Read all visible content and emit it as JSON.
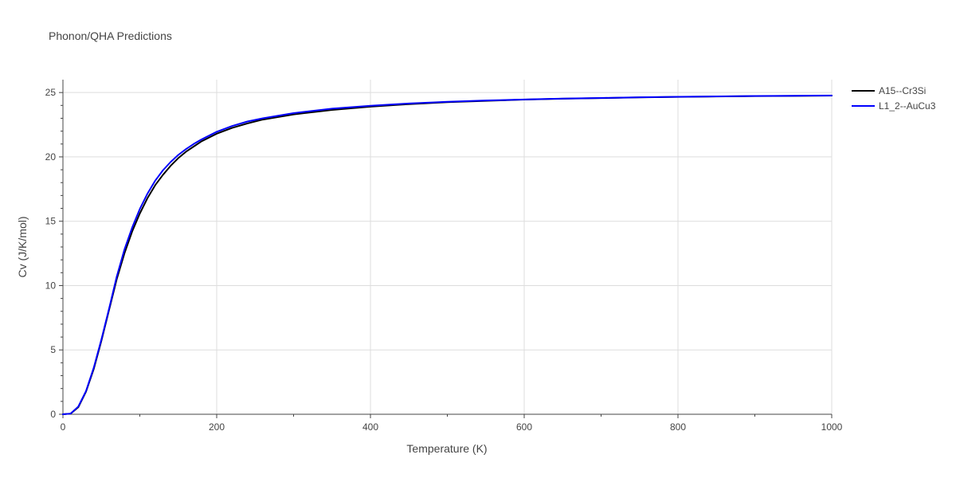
{
  "chart_data": {
    "type": "line",
    "title": "Phonon/QHA Predictions",
    "xlabel": "Temperature (K)",
    "ylabel": "Cv (J/K/mol)",
    "xlim": [
      0,
      1000
    ],
    "ylim": [
      0,
      26
    ],
    "xticks": [
      0,
      200,
      400,
      600,
      800,
      1000
    ],
    "yticks": [
      0,
      5,
      10,
      15,
      20,
      25
    ],
    "grid": true,
    "legend_position": "top-right",
    "series": [
      {
        "name": "A15--Cr3Si",
        "color": "#000000",
        "x": [
          0,
          10,
          20,
          30,
          40,
          50,
          60,
          70,
          80,
          90,
          100,
          110,
          120,
          130,
          140,
          150,
          160,
          170,
          180,
          200,
          220,
          240,
          260,
          280,
          300,
          350,
          400,
          450,
          500,
          550,
          600,
          650,
          700,
          750,
          800,
          850,
          900,
          950,
          1000
        ],
        "y": [
          0,
          0.05,
          0.55,
          1.75,
          3.5,
          5.7,
          8.1,
          10.5,
          12.5,
          14.2,
          15.6,
          16.8,
          17.8,
          18.6,
          19.3,
          19.9,
          20.4,
          20.8,
          21.2,
          21.8,
          22.25,
          22.6,
          22.9,
          23.1,
          23.3,
          23.65,
          23.9,
          24.1,
          24.25,
          24.35,
          24.45,
          24.52,
          24.57,
          24.62,
          24.66,
          24.69,
          24.72,
          24.74,
          24.76
        ]
      },
      {
        "name": "L1_2--AuCu3",
        "color": "#0000ff",
        "x": [
          0,
          10,
          20,
          30,
          40,
          50,
          60,
          70,
          80,
          90,
          100,
          110,
          120,
          130,
          140,
          150,
          160,
          170,
          180,
          200,
          220,
          240,
          260,
          280,
          300,
          350,
          400,
          450,
          500,
          550,
          600,
          650,
          700,
          750,
          800,
          850,
          900,
          950,
          1000
        ],
        "y": [
          0,
          0.05,
          0.6,
          1.8,
          3.6,
          5.8,
          8.2,
          10.7,
          12.8,
          14.5,
          15.95,
          17.15,
          18.15,
          18.95,
          19.6,
          20.15,
          20.6,
          21.0,
          21.35,
          21.95,
          22.4,
          22.75,
          23.0,
          23.2,
          23.4,
          23.75,
          23.97,
          24.15,
          24.28,
          24.38,
          24.46,
          24.53,
          24.58,
          24.63,
          24.67,
          24.7,
          24.73,
          24.75,
          24.77
        ]
      }
    ]
  }
}
